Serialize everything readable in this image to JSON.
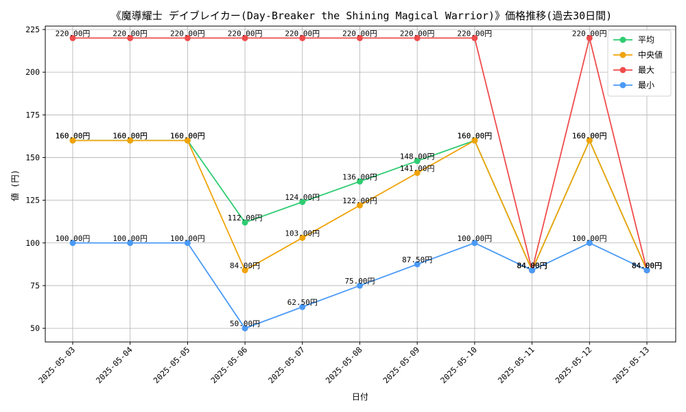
{
  "chart_data": {
    "type": "line",
    "title": "《魔導耀士 デイブレイカー(Day-Breaker the Shining Magical Warrior)》価格推移(過去30日間)",
    "xlabel": "日付",
    "ylabel": "値 (円)",
    "categories": [
      "2025-05-03",
      "2025-05-04",
      "2025-05-05",
      "2025-05-06",
      "2025-05-07",
      "2025-05-08",
      "2025-05-09",
      "2025-05-10",
      "2025-05-11",
      "2025-05-12",
      "2025-05-13"
    ],
    "ylim": [
      42,
      227
    ],
    "yticks": [
      50,
      75,
      100,
      125,
      150,
      175,
      200,
      225
    ],
    "grid": true,
    "legend_position": "top-right",
    "value_suffix": "円",
    "series": [
      {
        "name": "平均",
        "color": "#2ecc71",
        "values": [
          160,
          160,
          160,
          112,
          124,
          136,
          148,
          160,
          84,
          160,
          84
        ],
        "labels": [
          "160.00円",
          "160.00円",
          "160.00円",
          "112.00円",
          "124.00円",
          "136.00円",
          "148.00円",
          "160.00円",
          "84.00円",
          "160.00円",
          "84.00円"
        ]
      },
      {
        "name": "中央値",
        "color": "#f0a30a",
        "values": [
          160,
          160,
          160,
          84,
          103,
          122,
          141,
          160,
          84,
          160,
          84
        ],
        "labels": [
          "160.00円",
          "160.00円",
          "160.00円",
          "84.00円",
          "103.00円",
          "122.00円",
          "141.00円",
          "160.00円",
          "84.00円",
          "160.00円",
          "84.00円"
        ]
      },
      {
        "name": "最大",
        "color": "#ef4b4b",
        "values": [
          220,
          220,
          220,
          220,
          220,
          220,
          220,
          220,
          84,
          220,
          84
        ],
        "labels": [
          "220.00円",
          "220.00円",
          "220.00円",
          "220.00円",
          "220.00円",
          "220.00円",
          "220.00円",
          "220.00円",
          "84.00円",
          "220.00円",
          "84.00円"
        ]
      },
      {
        "name": "最小",
        "color": "#4a9af5",
        "values": [
          100,
          100,
          100,
          50,
          62.5,
          75,
          87.5,
          100,
          84,
          100,
          84
        ],
        "labels": [
          "100.00円",
          "100.00円",
          "100.00円",
          "50.00円",
          "62.50円",
          "75.00円",
          "87.50円",
          "100.00円",
          "84.00円",
          "100.00円",
          "84.00円"
        ]
      }
    ]
  }
}
